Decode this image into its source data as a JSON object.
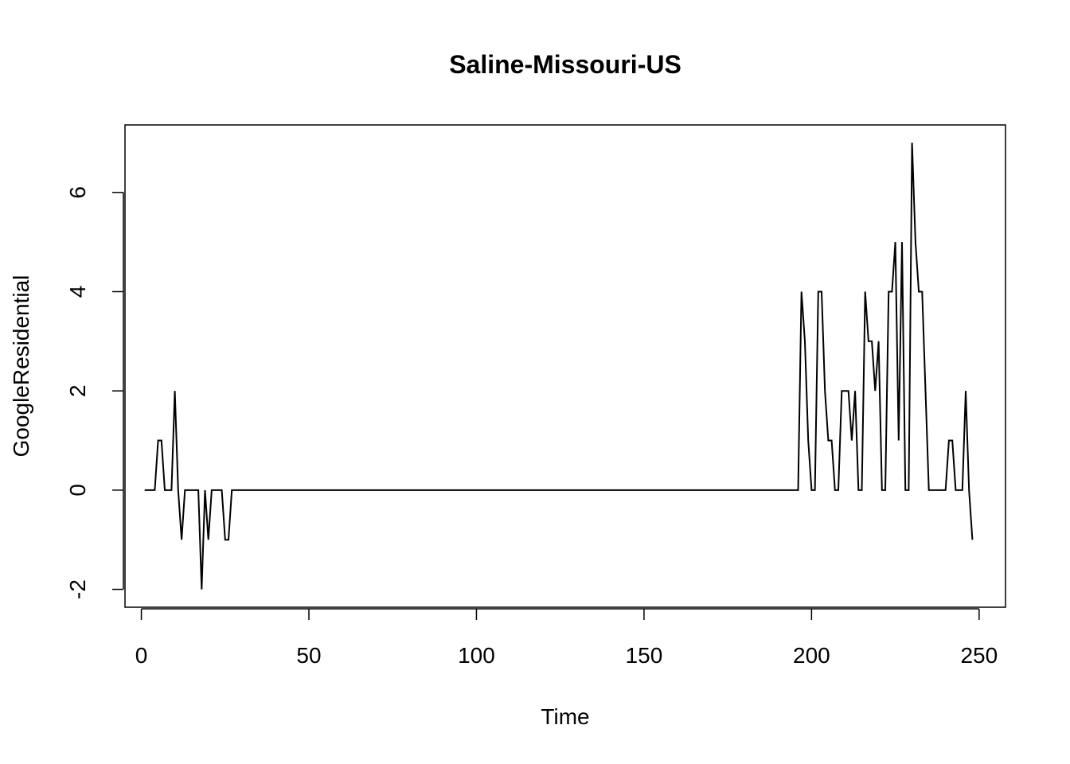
{
  "chart_data": {
    "type": "line",
    "title": "Saline-Missouri-US",
    "xlabel": "Time",
    "ylabel": "GoogleResidential",
    "xlim": [
      -4.88,
      257.88
    ],
    "ylim": [
      -2.36,
      7.36
    ],
    "x_ticks": [
      0,
      50,
      100,
      150,
      200,
      250
    ],
    "y_ticks": [
      -2,
      0,
      2,
      4,
      6
    ],
    "grid": false,
    "legend": "none",
    "line_color": "#000000",
    "series": [
      {
        "points": [
          [
            1,
            0
          ],
          [
            2,
            0
          ],
          [
            3,
            0
          ],
          [
            4,
            0
          ],
          [
            5,
            1
          ],
          [
            6,
            1
          ],
          [
            7,
            0
          ],
          [
            8,
            0
          ],
          [
            9,
            0
          ],
          [
            10,
            2
          ],
          [
            11,
            0
          ],
          [
            12,
            -1
          ],
          [
            13,
            0
          ],
          [
            14,
            0
          ],
          [
            15,
            0
          ],
          [
            16,
            0
          ],
          [
            17,
            0
          ],
          [
            18,
            -2
          ],
          [
            19,
            0
          ],
          [
            20,
            -1
          ],
          [
            21,
            0
          ],
          [
            22,
            0
          ],
          [
            23,
            0
          ],
          [
            24,
            0
          ],
          [
            25,
            -1
          ],
          [
            26,
            -1
          ],
          [
            27,
            0
          ],
          [
            28,
            0
          ],
          [
            30,
            0
          ],
          [
            60,
            0
          ],
          [
            100,
            0
          ],
          [
            150,
            0
          ],
          [
            196,
            0
          ],
          [
            197,
            4
          ],
          [
            198,
            3
          ],
          [
            199,
            1
          ],
          [
            200,
            0
          ],
          [
            201,
            0
          ],
          [
            202,
            4
          ],
          [
            203,
            4
          ],
          [
            204,
            2
          ],
          [
            205,
            1
          ],
          [
            206,
            1
          ],
          [
            207,
            0
          ],
          [
            208,
            0
          ],
          [
            209,
            2
          ],
          [
            210,
            2
          ],
          [
            211,
            2
          ],
          [
            212,
            1
          ],
          [
            213,
            2
          ],
          [
            214,
            0
          ],
          [
            215,
            0
          ],
          [
            216,
            4
          ],
          [
            217,
            3
          ],
          [
            218,
            3
          ],
          [
            219,
            2
          ],
          [
            220,
            3
          ],
          [
            221,
            0
          ],
          [
            222,
            0
          ],
          [
            223,
            4
          ],
          [
            224,
            4
          ],
          [
            225,
            5
          ],
          [
            226,
            1
          ],
          [
            227,
            5
          ],
          [
            228,
            0
          ],
          [
            229,
            0
          ],
          [
            230,
            7
          ],
          [
            231,
            5
          ],
          [
            232,
            4
          ],
          [
            233,
            4
          ],
          [
            234,
            2
          ],
          [
            235,
            0
          ],
          [
            236,
            0
          ],
          [
            237,
            0
          ],
          [
            238,
            0
          ],
          [
            239,
            0
          ],
          [
            240,
            0
          ],
          [
            241,
            1
          ],
          [
            242,
            1
          ],
          [
            243,
            0
          ],
          [
            244,
            0
          ],
          [
            245,
            0
          ],
          [
            246,
            2
          ],
          [
            247,
            0
          ],
          [
            248,
            -1
          ]
        ]
      }
    ]
  }
}
